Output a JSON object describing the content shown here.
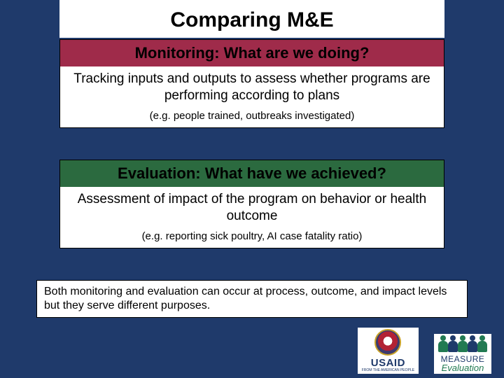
{
  "slide": {
    "title": "Comparing M&E",
    "background_color": "#1f3a6b"
  },
  "monitoring": {
    "heading": "Monitoring: What are we doing?",
    "heading_bg": "#9f2b4a",
    "body": "Tracking inputs and outputs to assess whether programs are performing according to plans",
    "example": "(e.g. people trained, outbreaks investigated)"
  },
  "evaluation": {
    "heading": "Evaluation: What have we we achieved?",
    "heading_corrected": "Evaluation: What have we achieved?",
    "heading_bg": "#2b6a3f",
    "body": "Assessment of impact of the program on behavior or health outcome",
    "example": "(e.g. reporting sick poultry, AI case fatality ratio)"
  },
  "note": "Both monitoring and evaluation can occur at process, outcome, and impact levels but they serve different purposes.",
  "logos": {
    "usaid": {
      "name": "USAID",
      "tagline": "FROM THE AMERICAN PEOPLE"
    },
    "measure": {
      "name": "MEASURE",
      "sub": "Evaluation"
    }
  },
  "typography": {
    "title_fontsize": 30,
    "heading_fontsize": 22,
    "body_fontsize": 19,
    "example_fontsize": 15,
    "note_fontsize": 16
  }
}
